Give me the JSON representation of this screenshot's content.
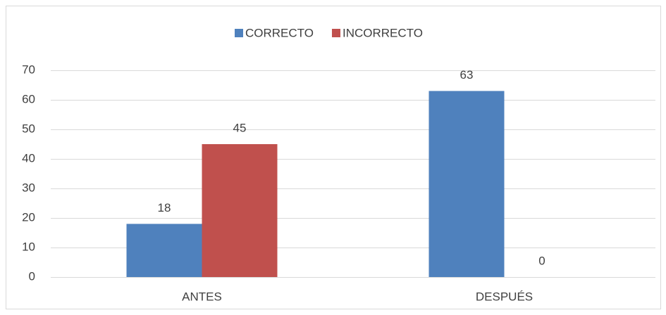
{
  "chart_data": {
    "type": "bar",
    "categories": [
      "ANTES",
      "DESPUÉS"
    ],
    "series": [
      {
        "name": "CORRECTO",
        "color": "#4f81bd",
        "values": [
          18,
          63
        ]
      },
      {
        "name": "INCORRECTO",
        "color": "#c0504d",
        "values": [
          45,
          0
        ]
      }
    ],
    "ylim": [
      0,
      70
    ],
    "yticks": [
      0,
      10,
      20,
      30,
      40,
      50,
      60,
      70
    ],
    "grid": true,
    "legend": "top"
  }
}
